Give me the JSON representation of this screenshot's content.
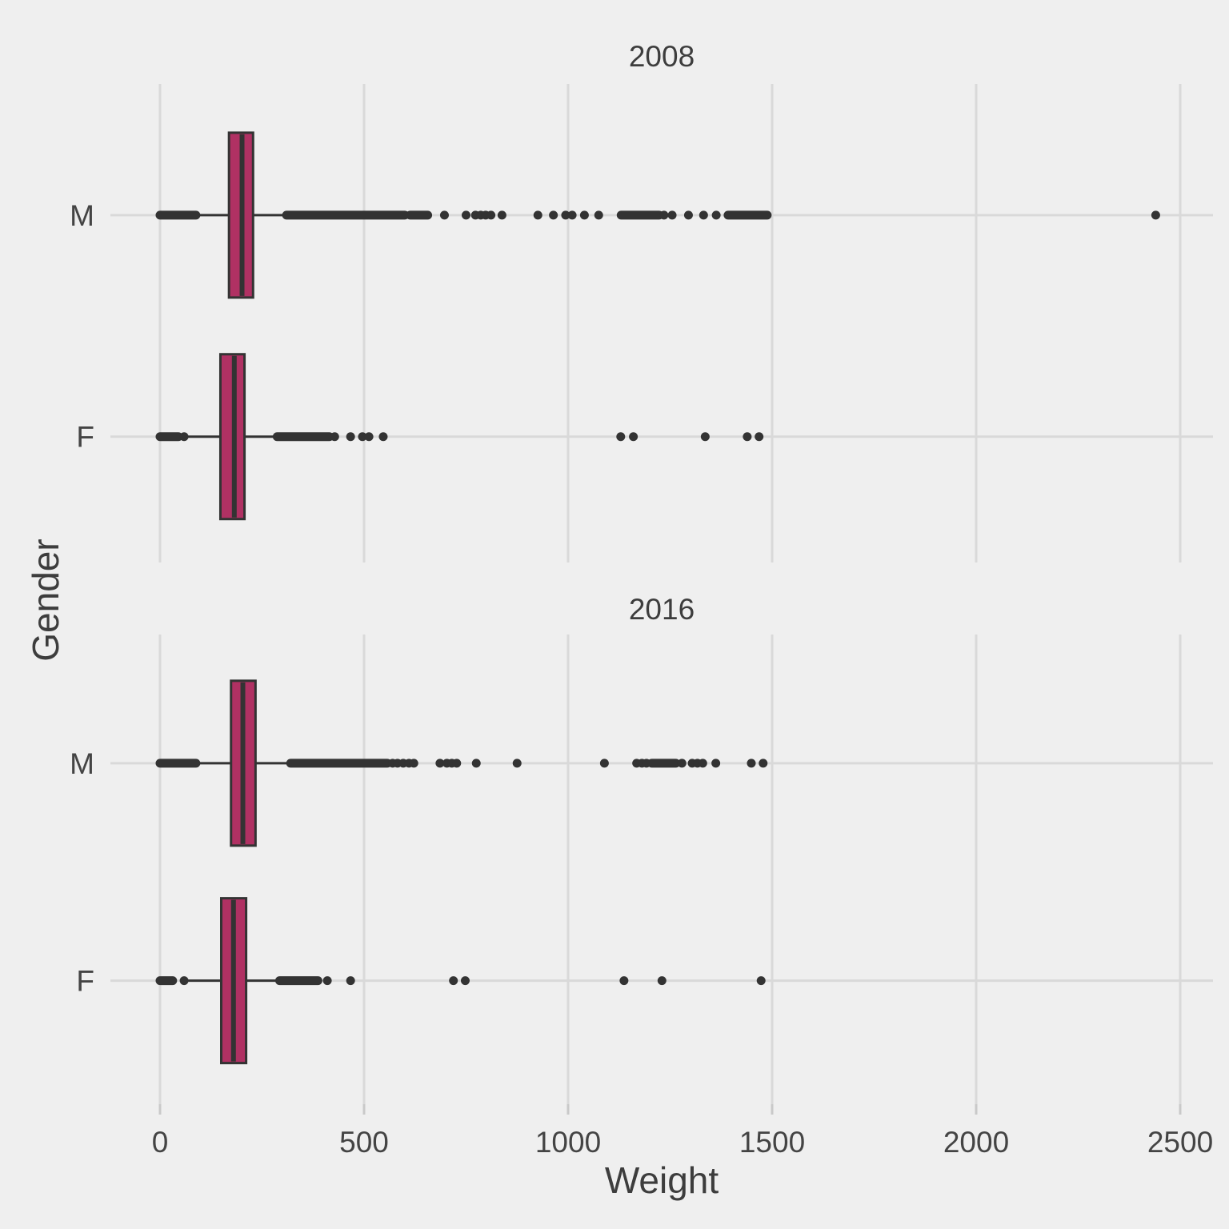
{
  "figure": {
    "background": "#EFEFEF"
  },
  "chart_data": {
    "type": "boxplot",
    "orientation": "horizontal",
    "xlabel": "Weight",
    "ylabel": "Gender",
    "x_ticks": [
      0,
      500,
      1000,
      1500,
      2000,
      2500
    ],
    "xlim": [
      -120,
      2580
    ],
    "grid": true,
    "legend": "none",
    "colors": {
      "box_fill": "#B03163",
      "line": "#333333",
      "grid": "#D9D9D9",
      "tick": "#C9C9C9",
      "text": "#444444",
      "title_text": "#3d3d3d",
      "background": "#EFEFEF"
    },
    "facets": [
      {
        "title": "2008",
        "rows": [
          {
            "label": "M",
            "stats": {
              "whisker_low": 94,
              "q1": 169,
              "median": 201,
              "q3": 228,
              "whisker_high": 308
            },
            "outlier_segments": [
              [
                0,
                88
              ],
              [
                310,
                600
              ],
              [
                613,
                656
              ],
              [
                1130,
                1223
              ],
              [
                1392,
                1488
              ]
            ],
            "outlier_points": [
              697,
              750,
              773,
              786,
              798,
              811,
              838,
              926,
              964,
              994,
              1010,
              1040,
              1075,
              1235,
              1255,
              1295,
              1332,
              1363,
              2440
            ]
          },
          {
            "label": "F",
            "stats": {
              "whisker_low": 68,
              "q1": 148,
              "median": 182,
              "q3": 207,
              "whisker_high": 281
            },
            "outlier_segments": [
              [
                0,
                45
              ],
              [
                287,
                415
              ]
            ],
            "outlier_points": [
              59,
              428,
              467,
              496,
              512,
              547,
              1129,
              1160,
              1336,
              1439,
              1468
            ]
          }
        ]
      },
      {
        "title": "2016",
        "rows": [
          {
            "label": "M",
            "stats": {
              "whisker_low": 92,
              "q1": 174,
              "median": 203,
              "q3": 234,
              "whisker_high": 315
            },
            "outlier_segments": [
              [
                0,
                88
              ],
              [
                320,
                557
              ],
              [
                1205,
                1264
              ]
            ],
            "outlier_points": [
              570,
              582,
              596,
              610,
              622,
              686,
              703,
              715,
              727,
              775,
              875,
              1089,
              1168,
              1181,
              1192,
              1279,
              1304,
              1317,
              1330,
              1362,
              1449,
              1478
            ]
          },
          {
            "label": "F",
            "stats": {
              "whisker_low": 63,
              "q1": 150,
              "median": 180,
              "q3": 211,
              "whisker_high": 289
            },
            "outlier_segments": [
              [
                0,
                31
              ],
              [
                293,
                387
              ]
            ],
            "outlier_points": [
              59,
              410,
              467,
              719,
              748,
              1137,
              1230,
              1473
            ]
          }
        ]
      }
    ]
  }
}
